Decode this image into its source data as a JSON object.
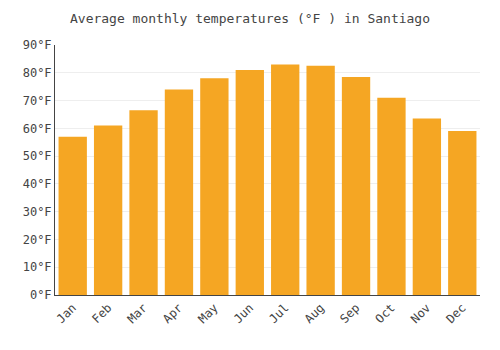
{
  "chart_data": {
    "type": "bar",
    "title": "Average monthly temperatures (°F ) in Santiago",
    "categories": [
      "Jan",
      "Feb",
      "Mar",
      "Apr",
      "May",
      "Jun",
      "Jul",
      "Aug",
      "Sep",
      "Oct",
      "Nov",
      "Dec"
    ],
    "values": [
      57,
      61,
      66.5,
      74,
      78,
      81,
      83,
      82.5,
      78.5,
      71,
      63.5,
      59
    ],
    "color": "#F5A623",
    "ylim": [
      0,
      90
    ],
    "yticks": [
      {
        "value": 0,
        "label": "0°F"
      },
      {
        "value": 10,
        "label": "10°F"
      },
      {
        "value": 20,
        "label": "20°F"
      },
      {
        "value": 30,
        "label": "30°F"
      },
      {
        "value": 40,
        "label": "40°F"
      },
      {
        "value": 50,
        "label": "50°F"
      },
      {
        "value": 60,
        "label": "60°F"
      },
      {
        "value": 70,
        "label": "70°F"
      },
      {
        "value": 80,
        "label": "80°F"
      },
      {
        "value": 90,
        "label": "90°F"
      }
    ],
    "grid": true
  }
}
